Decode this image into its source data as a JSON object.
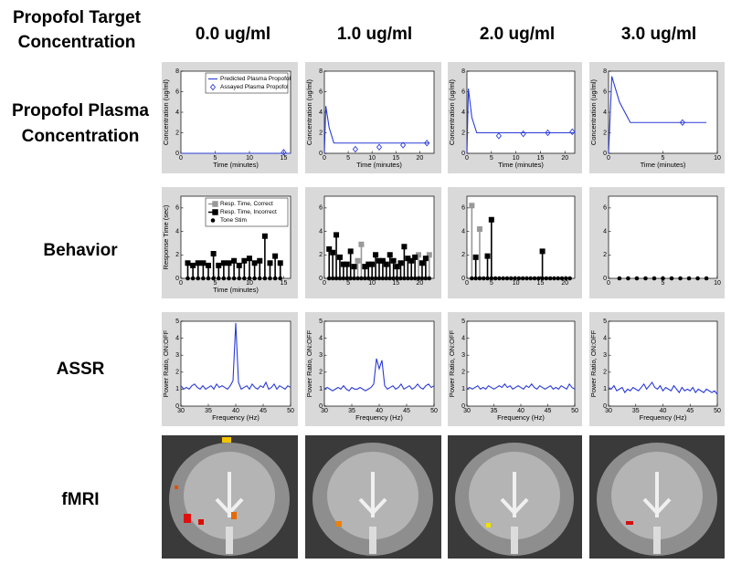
{
  "header": {
    "corner": [
      "Propofol Target",
      "Concentration"
    ],
    "columns": [
      "0.0 ug/ml",
      "1.0 ug/ml",
      "2.0 ug/ml",
      "3.0 ug/ml"
    ],
    "rows": [
      [
        "Propofol Plasma",
        "Concentration"
      ],
      [
        "Behavior"
      ],
      [
        "ASSR"
      ],
      [
        "fMRI"
      ]
    ]
  },
  "chart_data": [
    {
      "type": "line",
      "xlabel": "Time (minutes)",
      "ylabel": "Concentration (ug/ml)",
      "xlim": [
        0,
        16
      ],
      "xticks": [
        0,
        5,
        10,
        15
      ],
      "ylim": [
        0,
        8
      ],
      "yticks": [
        0,
        2,
        4,
        6,
        8
      ],
      "legend": "upper right",
      "series": [
        {
          "name": "Predicted Plasma Propofol",
          "style": "line",
          "color": "#2a3bd6",
          "x": [
            0,
            16
          ],
          "values": [
            0,
            0
          ]
        },
        {
          "name": "Assayed Plasma Propofol",
          "style": "diamond",
          "color": "#2a3bd6",
          "x": [
            15
          ],
          "values": [
            0.1
          ]
        }
      ]
    },
    {
      "type": "line",
      "xlabel": "Time (minutes)",
      "ylabel": "Concentration (ug/ml)",
      "xlim": [
        0,
        23
      ],
      "xticks": [
        0,
        5,
        10,
        15,
        20
      ],
      "ylim": [
        0,
        8
      ],
      "yticks": [
        0,
        2,
        4,
        6,
        8
      ],
      "series": [
        {
          "name": "Predicted Plasma Propofol",
          "style": "line",
          "color": "#2a3bd6",
          "x": [
            0,
            0.3,
            1,
            2,
            22
          ],
          "values": [
            0,
            4.6,
            2.5,
            1,
            1
          ]
        },
        {
          "name": "Assayed Plasma Propofol",
          "style": "diamond",
          "color": "#2a3bd6",
          "x": [
            6.5,
            11.5,
            16.5,
            21.5
          ],
          "values": [
            0.4,
            0.6,
            0.8,
            1.0
          ]
        }
      ]
    },
    {
      "type": "line",
      "xlabel": "Time (minutes)",
      "ylabel": "Concentration (ug/ml)",
      "xlim": [
        0,
        22
      ],
      "xticks": [
        0,
        5,
        10,
        15,
        20
      ],
      "ylim": [
        0,
        8
      ],
      "yticks": [
        0,
        2,
        4,
        6,
        8
      ],
      "series": [
        {
          "name": "Predicted Plasma Propofol",
          "style": "line",
          "color": "#2a3bd6",
          "x": [
            0,
            0.3,
            1,
            2,
            22
          ],
          "values": [
            0,
            6.3,
            3.5,
            2,
            2
          ]
        },
        {
          "name": "Assayed Plasma Propofol",
          "style": "diamond",
          "color": "#2a3bd6",
          "x": [
            6.5,
            11.5,
            16.5,
            21.5
          ],
          "values": [
            1.7,
            1.9,
            2.0,
            2.1
          ]
        }
      ]
    },
    {
      "type": "line",
      "xlabel": "Time (minutes)",
      "ylabel": "Concentration (ug/ml)",
      "xlim": [
        0,
        10
      ],
      "xticks": [
        0,
        5,
        10
      ],
      "ylim": [
        0,
        8
      ],
      "yticks": [
        0,
        2,
        4,
        6,
        8
      ],
      "series": [
        {
          "name": "Predicted Plasma Propofol",
          "style": "line",
          "color": "#2a3bd6",
          "x": [
            0,
            0.3,
            1,
            2,
            9
          ],
          "values": [
            0,
            7.5,
            5,
            3,
            3
          ]
        },
        {
          "name": "Assayed Plasma Propofol",
          "style": "diamond",
          "color": "#2a3bd6",
          "x": [
            6.8
          ],
          "values": [
            3.0
          ]
        }
      ]
    },
    {
      "type": "stem",
      "xlabel": "Time (minutes)",
      "ylabel": "Response Time (sec)",
      "xlim": [
        0,
        16
      ],
      "xticks": [
        0,
        5,
        10,
        15
      ],
      "ylim": [
        0,
        7
      ],
      "yticks": [
        0,
        2,
        4,
        6
      ],
      "legend": "upper right",
      "series": [
        {
          "name": "Resp. Time, Correct",
          "style": "stem",
          "color": "#999999",
          "x": [],
          "values": []
        },
        {
          "name": "Resp. Time, Incorrect",
          "style": "stem",
          "color": "#000000",
          "x": [
            1,
            1.75,
            2.5,
            3.25,
            4,
            4.75,
            5.5,
            6.25,
            7,
            7.75,
            8.5,
            9.25,
            10,
            10.75,
            11.5,
            12.25,
            13,
            13.75,
            14.5
          ],
          "values": [
            1.3,
            1.1,
            1.3,
            1.3,
            1.1,
            2.1,
            1.1,
            1.3,
            1.3,
            1.5,
            1.1,
            1.5,
            1.7,
            1.3,
            1.5,
            3.6,
            1.3,
            1.9,
            1.3
          ]
        },
        {
          "name": "Tone Stim",
          "style": "dot",
          "color": "#000000",
          "x": [
            1,
            1.75,
            2.5,
            3.25,
            4,
            4.75,
            5.5,
            6.25,
            7,
            7.75,
            8.5,
            9.25,
            10,
            10.75,
            11.5,
            12.25,
            13,
            13.75,
            14.5
          ],
          "values": [
            0,
            0,
            0,
            0,
            0,
            0,
            0,
            0,
            0,
            0,
            0,
            0,
            0,
            0,
            0,
            0,
            0,
            0,
            0
          ]
        }
      ]
    },
    {
      "type": "stem",
      "xlim": [
        0,
        23
      ],
      "xticks": [
        0,
        5,
        10,
        15,
        20
      ],
      "ylim": [
        0,
        7
      ],
      "yticks": [
        0,
        2,
        4,
        6
      ],
      "series": [
        {
          "name": "Resp. Time, Correct",
          "style": "stem",
          "color": "#999999",
          "x": [
            7,
            7.75,
            19.75,
            22
          ],
          "values": [
            1.5,
            2.9,
            2.0,
            2.0
          ]
        },
        {
          "name": "Resp. Time, Incorrect",
          "style": "stem",
          "color": "#000000",
          "x": [
            1,
            1.75,
            2.5,
            3.25,
            4,
            4.75,
            5.5,
            6.25,
            8.5,
            9.25,
            10,
            10.75,
            11.5,
            12.25,
            13,
            13.75,
            14.5,
            15.25,
            16,
            16.75,
            17.5,
            18.25,
            19,
            20.5,
            21.25
          ],
          "values": [
            2.5,
            2.2,
            3.7,
            1.8,
            1.2,
            1.2,
            2.3,
            1.0,
            1.0,
            1.2,
            1.2,
            2.0,
            1.5,
            1.5,
            1.2,
            2.0,
            1.5,
            1.0,
            1.3,
            2.7,
            1.7,
            1.5,
            1.8,
            1.3,
            1.7
          ]
        },
        {
          "name": "Tone Stim",
          "style": "dot",
          "color": "#000000",
          "x": [
            1,
            1.75,
            2.5,
            3.25,
            4,
            4.75,
            5.5,
            6.25,
            7,
            7.75,
            8.5,
            9.25,
            10,
            10.75,
            11.5,
            12.25,
            13,
            13.75,
            14.5,
            15.25,
            16,
            16.75,
            17.5,
            18.25,
            19,
            19.75,
            20.5,
            21.25,
            22
          ],
          "values": [
            0,
            0,
            0,
            0,
            0,
            0,
            0,
            0,
            0,
            0,
            0,
            0,
            0,
            0,
            0,
            0,
            0,
            0,
            0,
            0,
            0,
            0,
            0,
            0,
            0,
            0,
            0,
            0,
            0
          ]
        }
      ]
    },
    {
      "type": "stem",
      "xlim": [
        0,
        22
      ],
      "xticks": [
        0,
        5,
        10,
        15,
        20
      ],
      "ylim": [
        0,
        7
      ],
      "yticks": [
        0,
        2,
        4,
        6
      ],
      "series": [
        {
          "name": "Resp. Time, Correct",
          "style": "stem",
          "color": "#999999",
          "x": [
            1,
            2.6
          ],
          "values": [
            6.2,
            4.2
          ]
        },
        {
          "name": "Resp. Time, Incorrect",
          "style": "stem",
          "color": "#000000",
          "x": [
            1.8,
            4.2,
            5,
            15.4
          ],
          "values": [
            1.8,
            1.9,
            5.0,
            2.3
          ]
        },
        {
          "name": "Tone Stim",
          "style": "dot",
          "color": "#000000",
          "x": [
            1,
            1.8,
            2.6,
            3.4,
            4.2,
            5,
            5.8,
            6.6,
            7.4,
            8.2,
            9,
            9.8,
            10.6,
            11.4,
            12.2,
            13,
            13.8,
            14.6,
            15.4,
            16.2,
            17,
            17.8,
            18.6,
            19.4,
            20.2,
            21
          ],
          "values": [
            0,
            0,
            0,
            0,
            0,
            0,
            0,
            0,
            0,
            0,
            0,
            0,
            0,
            0,
            0,
            0,
            0,
            0,
            0,
            0,
            0,
            0,
            0,
            0,
            0,
            0
          ]
        }
      ]
    },
    {
      "type": "stem",
      "xlim": [
        0,
        10
      ],
      "xticks": [
        0,
        5,
        10
      ],
      "ylim": [
        0,
        7
      ],
      "yticks": [
        0,
        2,
        4,
        6
      ],
      "series": [
        {
          "name": "Tone Stim",
          "style": "dot",
          "color": "#000000",
          "x": [
            1,
            1.8,
            2.6,
            3.4,
            4.2,
            5,
            5.8,
            6.6,
            7.4,
            8.2,
            9
          ],
          "values": [
            0,
            0,
            0,
            0,
            0,
            0,
            0,
            0,
            0,
            0,
            0
          ]
        }
      ]
    },
    {
      "type": "line",
      "xlabel": "Frequency (Hz)",
      "ylabel": "Power Ratio, ON:OFF",
      "xlim": [
        30,
        50
      ],
      "xticks": [
        30,
        35,
        40,
        45,
        50
      ],
      "ylim": [
        0,
        5
      ],
      "yticks": [
        0,
        1,
        2,
        3,
        4,
        5
      ],
      "series": [
        {
          "style": "line",
          "color": "#2a3bd6",
          "x": [
            30,
            30.5,
            31,
            31.5,
            32,
            32.5,
            33,
            33.5,
            34,
            34.5,
            35,
            35.5,
            36,
            36.5,
            37,
            37.5,
            38,
            38.5,
            39,
            39.5,
            40,
            40.5,
            41,
            41.5,
            42,
            42.5,
            43,
            43.5,
            44,
            44.5,
            45,
            45.5,
            46,
            46.5,
            47,
            47.5,
            48,
            48.5,
            49,
            49.5,
            50
          ],
          "values": [
            1.2,
            1.0,
            1.1,
            1.0,
            1.2,
            1.3,
            1.1,
            1.0,
            1.2,
            1.0,
            1.1,
            1.2,
            1.0,
            1.3,
            1.1,
            1.2,
            1.1,
            1.0,
            1.2,
            1.5,
            4.9,
            1.4,
            1.0,
            1.1,
            1.2,
            1.0,
            1.3,
            1.1,
            1.0,
            1.2,
            1.1,
            1.4,
            1.0,
            1.1,
            1.3,
            1.0,
            1.2,
            1.1,
            1.0,
            1.2,
            1.1
          ]
        }
      ]
    },
    {
      "type": "line",
      "xlabel": "Frequency (Hz)",
      "ylabel": "Power Ratio, ON:OFF",
      "xlim": [
        30,
        50
      ],
      "xticks": [
        30,
        35,
        40,
        45,
        50
      ],
      "ylim": [
        0,
        5
      ],
      "yticks": [
        0,
        1,
        2,
        3,
        4,
        5
      ],
      "series": [
        {
          "style": "line",
          "color": "#2a3bd6",
          "x": [
            30,
            30.5,
            31,
            31.5,
            32,
            32.5,
            33,
            33.5,
            34,
            34.5,
            35,
            35.5,
            36,
            36.5,
            37,
            37.5,
            38,
            38.5,
            39,
            39.5,
            40,
            40.5,
            41,
            41.5,
            42,
            42.5,
            43,
            43.5,
            44,
            44.5,
            45,
            45.5,
            46,
            46.5,
            47,
            47.5,
            48,
            48.5,
            49,
            49.5,
            50
          ],
          "values": [
            1.0,
            1.1,
            1.0,
            0.9,
            1.0,
            1.1,
            1.0,
            1.2,
            1.0,
            0.9,
            1.1,
            1.0,
            1.0,
            1.1,
            1.0,
            0.9,
            1.0,
            1.1,
            1.3,
            2.8,
            2.2,
            2.7,
            1.2,
            1.0,
            1.1,
            1.2,
            1.0,
            1.1,
            1.3,
            1.0,
            1.1,
            1.2,
            1.0,
            1.1,
            1.3,
            1.1,
            1.0,
            1.2,
            1.3,
            1.1,
            1.2
          ]
        }
      ]
    },
    {
      "type": "line",
      "xlabel": "Frequency (Hz)",
      "ylabel": "Power Ratio, ON:OFF",
      "xlim": [
        30,
        50
      ],
      "xticks": [
        30,
        35,
        40,
        45,
        50
      ],
      "ylim": [
        0,
        5
      ],
      "yticks": [
        0,
        1,
        2,
        3,
        4,
        5
      ],
      "series": [
        {
          "style": "line",
          "color": "#2a3bd6",
          "x": [
            30,
            30.5,
            31,
            31.5,
            32,
            32.5,
            33,
            33.5,
            34,
            34.5,
            35,
            35.5,
            36,
            36.5,
            37,
            37.5,
            38,
            38.5,
            39,
            39.5,
            40,
            40.5,
            41,
            41.5,
            42,
            42.5,
            43,
            43.5,
            44,
            44.5,
            45,
            45.5,
            46,
            46.5,
            47,
            47.5,
            48,
            48.5,
            49,
            49.5,
            50
          ],
          "values": [
            1.0,
            1.1,
            1.0,
            1.1,
            1.2,
            1.0,
            1.1,
            1.0,
            1.2,
            1.1,
            1.0,
            1.1,
            1.2,
            1.1,
            1.3,
            1.1,
            1.2,
            1.0,
            1.1,
            1.2,
            1.1,
            1.0,
            1.2,
            1.1,
            1.3,
            1.1,
            1.0,
            1.2,
            1.1,
            1.0,
            1.1,
            1.2,
            1.0,
            1.1,
            1.0,
            1.2,
            1.1,
            1.0,
            1.3,
            1.1,
            1.0
          ]
        }
      ]
    },
    {
      "type": "line",
      "xlabel": "Frequency (Hz)",
      "ylabel": "Power Ratio, ON:OFF",
      "xlim": [
        30,
        50
      ],
      "xticks": [
        30,
        35,
        40,
        45,
        50
      ],
      "ylim": [
        0,
        5
      ],
      "yticks": [
        0,
        1,
        2,
        3,
        4,
        5
      ],
      "series": [
        {
          "style": "line",
          "color": "#2a3bd6",
          "x": [
            30,
            30.5,
            31,
            31.5,
            32,
            32.5,
            33,
            33.5,
            34,
            34.5,
            35,
            35.5,
            36,
            36.5,
            37,
            37.5,
            38,
            38.5,
            39,
            39.5,
            40,
            40.5,
            41,
            41.5,
            42,
            42.5,
            43,
            43.5,
            44,
            44.5,
            45,
            45.5,
            46,
            46.5,
            47,
            47.5,
            48,
            48.5,
            49,
            49.5,
            50
          ],
          "values": [
            1.1,
            1.0,
            1.2,
            0.9,
            1.0,
            1.1,
            0.8,
            1.0,
            0.9,
            1.1,
            1.0,
            0.9,
            1.1,
            1.3,
            1.0,
            1.2,
            1.4,
            1.1,
            1.0,
            1.2,
            0.9,
            1.1,
            1.0,
            0.9,
            1.2,
            1.0,
            0.8,
            1.1,
            0.9,
            1.0,
            0.9,
            1.1,
            0.8,
            1.0,
            0.9,
            0.8,
            1.0,
            0.9,
            0.8,
            0.9,
            0.7
          ]
        }
      ]
    }
  ]
}
